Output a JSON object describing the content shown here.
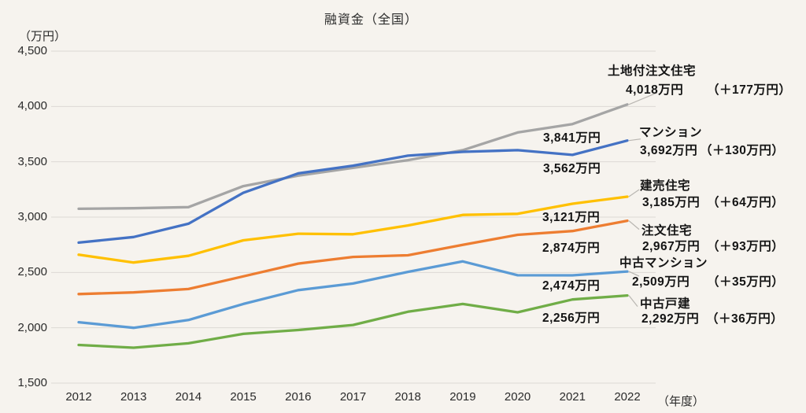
{
  "title": "融資金（全国）",
  "y_axis_unit_label": "（万円）",
  "x_axis_unit_label": "（年度）",
  "chart_data": {
    "type": "line",
    "title": "融資金（全国）",
    "xlabel": "年度",
    "ylabel": "万円",
    "ylim": [
      1500,
      4500
    ],
    "grid": true,
    "legend_position": "right-annotations",
    "categories": [
      "2012",
      "2013",
      "2014",
      "2015",
      "2016",
      "2017",
      "2018",
      "2019",
      "2020",
      "2021",
      "2022"
    ],
    "y_ticks": [
      {
        "value": 4500,
        "label": "4,500"
      },
      {
        "value": 4000,
        "label": "4,000"
      },
      {
        "value": 3500,
        "label": "3,500"
      },
      {
        "value": 3000,
        "label": "3,000"
      },
      {
        "value": 2500,
        "label": "2,500"
      },
      {
        "value": 2000,
        "label": "2,000"
      },
      {
        "value": 1500,
        "label": "1,500"
      }
    ],
    "series": [
      {
        "name": "土地付注文住宅",
        "color": "#A5A5A5",
        "values": [
          3075,
          3080,
          3090,
          3280,
          3375,
          3445,
          3515,
          3605,
          3765,
          3841,
          4018
        ],
        "annotation": {
          "value_2022": "4,018万円",
          "diff": "（＋177万円）",
          "value_2021": "3,841万円"
        }
      },
      {
        "name": "マンション",
        "color": "#4472C4",
        "values": [
          2770,
          2820,
          2940,
          3220,
          3395,
          3465,
          3555,
          3590,
          3605,
          3562,
          3692
        ],
        "annotation": {
          "value_2022": "3,692万円",
          "diff": "（＋130万円）",
          "value_2021": "3,562万円"
        }
      },
      {
        "name": "建売住宅",
        "color": "#FFC000",
        "values": [
          2660,
          2590,
          2650,
          2790,
          2850,
          2845,
          2925,
          3020,
          3030,
          3121,
          3185
        ],
        "annotation": {
          "value_2022": "3,185万円",
          "diff": "（＋64万円）",
          "value_2021": "3,121万円"
        }
      },
      {
        "name": "注文住宅",
        "color": "#ED7D31",
        "values": [
          2305,
          2320,
          2350,
          2465,
          2580,
          2640,
          2655,
          2750,
          2840,
          2874,
          2967
        ],
        "annotation": {
          "value_2022": "2,967万円",
          "diff": "（＋93万円）",
          "value_2021": "2,874万円"
        }
      },
      {
        "name": "中古マンション",
        "color": "#5B9BD5",
        "values": [
          2050,
          2000,
          2070,
          2215,
          2340,
          2400,
          2505,
          2600,
          2475,
          2474,
          2509
        ],
        "annotation": {
          "value_2022": "2,509万円",
          "diff": "（＋35万円）",
          "value_2021": "2,474万円"
        }
      },
      {
        "name": "中古戸建",
        "color": "#70AD47",
        "values": [
          1845,
          1820,
          1860,
          1945,
          1980,
          2025,
          2145,
          2215,
          2140,
          2256,
          2292
        ],
        "annotation": {
          "value_2022": "2,292万円",
          "diff": "（＋36万円）",
          "value_2021": "2,256万円"
        }
      }
    ]
  }
}
